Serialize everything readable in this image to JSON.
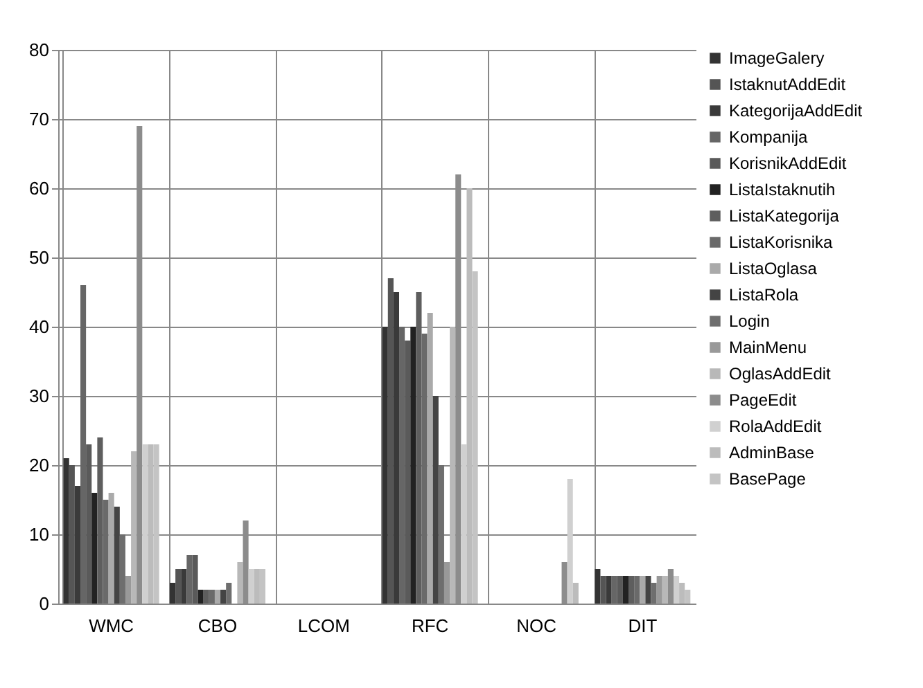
{
  "chart_data": {
    "type": "bar",
    "categories": [
      "WMC",
      "CBO",
      "LCOM",
      "RFC",
      "NOC",
      "DIT"
    ],
    "series": [
      {
        "name": "ImageGalery",
        "color": "#333333",
        "values": [
          21,
          3,
          0,
          40,
          0,
          5
        ]
      },
      {
        "name": "IstaknutAddEdit",
        "color": "#555555",
        "values": [
          20,
          5,
          0,
          47,
          0,
          4
        ]
      },
      {
        "name": "KategorijaAddEdit",
        "color": "#3a3a3a",
        "values": [
          17,
          5,
          0,
          45,
          0,
          4
        ]
      },
      {
        "name": "Kompanija",
        "color": "#666666",
        "values": [
          46,
          7,
          0,
          40,
          0,
          4
        ]
      },
      {
        "name": "KorisnikAddEdit",
        "color": "#5a5a5a",
        "values": [
          23,
          7,
          0,
          38,
          0,
          4
        ]
      },
      {
        "name": "ListaIstaknutih",
        "color": "#222222",
        "values": [
          16,
          2,
          0,
          40,
          0,
          4
        ]
      },
      {
        "name": "ListaKategorija",
        "color": "#5e5e5e",
        "values": [
          24,
          2,
          0,
          45,
          0,
          4
        ]
      },
      {
        "name": "ListaKorisnika",
        "color": "#6a6a6a",
        "values": [
          15,
          2,
          0,
          39,
          0,
          4
        ]
      },
      {
        "name": "ListaOglasa",
        "color": "#aaaaaa",
        "values": [
          16,
          2,
          0,
          42,
          0,
          4
        ]
      },
      {
        "name": "ListaRola",
        "color": "#444444",
        "values": [
          14,
          2,
          0,
          30,
          0,
          4
        ]
      },
      {
        "name": "Login",
        "color": "#6e6e6e",
        "values": [
          10,
          3,
          0,
          20,
          0,
          3
        ]
      },
      {
        "name": "MainMenu",
        "color": "#999999",
        "values": [
          4,
          0,
          0,
          6,
          0,
          4
        ]
      },
      {
        "name": "OglasAddEdit",
        "color": "#b8b8b8",
        "values": [
          22,
          6,
          0,
          40,
          0,
          4
        ]
      },
      {
        "name": "PageEdit",
        "color": "#8c8c8c",
        "values": [
          69,
          12,
          0,
          62,
          6,
          5
        ]
      },
      {
        "name": "RolaAddEdit",
        "color": "#d0d0d0",
        "values": [
          23,
          5,
          0,
          23,
          18,
          4
        ]
      },
      {
        "name": "AdminBase",
        "color": "#bcbcbc",
        "values": [
          23,
          5,
          0,
          60,
          3,
          3
        ]
      },
      {
        "name": "BasePage",
        "color": "#c4c4c4",
        "values": [
          23,
          5,
          0,
          48,
          0,
          2
        ]
      }
    ],
    "ylim": [
      0,
      80
    ],
    "yticks": [
      0,
      10,
      20,
      30,
      40,
      50,
      60,
      70,
      80
    ],
    "grid": true,
    "legend": "right"
  }
}
